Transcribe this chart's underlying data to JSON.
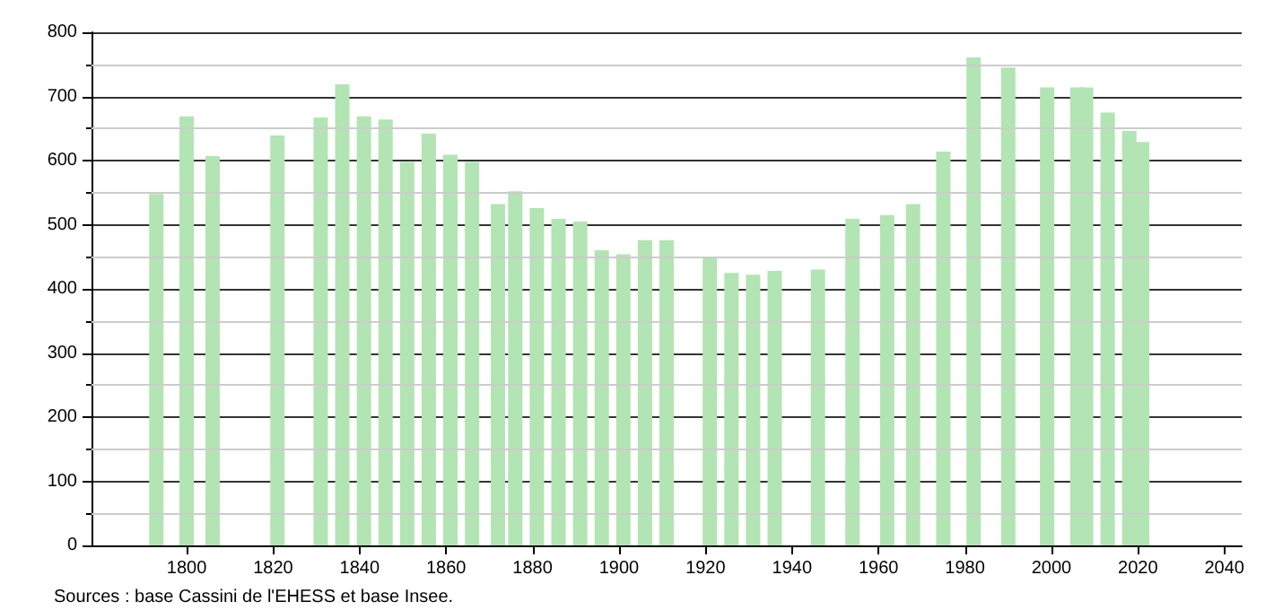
{
  "chart_data": {
    "type": "bar",
    "x": [
      1793,
      1800,
      1806,
      1821,
      1831,
      1836,
      1841,
      1846,
      1851,
      1856,
      1861,
      1866,
      1872,
      1876,
      1881,
      1886,
      1891,
      1896,
      1901,
      1906,
      1911,
      1921,
      1926,
      1931,
      1936,
      1946,
      1954,
      1962,
      1968,
      1975,
      1982,
      1990,
      1999,
      2006,
      2008,
      2013,
      2018,
      2021
    ],
    "values": [
      548,
      669,
      607,
      639,
      667,
      719,
      669,
      664,
      598,
      642,
      609,
      598,
      532,
      552,
      526,
      509,
      505,
      460,
      454,
      476,
      476,
      448,
      425,
      422,
      428,
      430,
      509,
      515,
      532,
      614,
      761,
      745,
      714,
      714,
      714,
      675,
      646,
      629
    ],
    "color": "#b3e4b3",
    "xlim": [
      1778,
      2044
    ],
    "xticks": [
      1800,
      1820,
      1840,
      1860,
      1880,
      1900,
      1920,
      1940,
      1960,
      1980,
      2000,
      2020,
      2040
    ],
    "ylim": [
      0,
      800
    ],
    "yticks": [
      0,
      100,
      200,
      300,
      400,
      500,
      600,
      700,
      800
    ],
    "grid": "y",
    "annotations": [
      "Sources : base Cassini de l'EHESS et base Insee."
    ]
  }
}
